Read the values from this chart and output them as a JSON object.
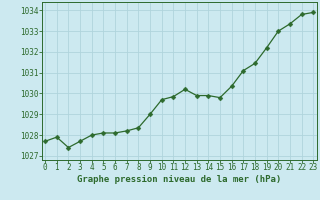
{
  "x": [
    0,
    1,
    2,
    3,
    4,
    5,
    6,
    7,
    8,
    9,
    10,
    11,
    12,
    13,
    14,
    15,
    16,
    17,
    18,
    19,
    20,
    21,
    22,
    23
  ],
  "y": [
    1027.7,
    1027.9,
    1027.4,
    1027.7,
    1028.0,
    1028.1,
    1028.1,
    1028.2,
    1028.35,
    1029.0,
    1029.7,
    1029.85,
    1030.2,
    1029.9,
    1029.9,
    1029.8,
    1030.35,
    1031.1,
    1031.45,
    1032.2,
    1033.0,
    1033.35,
    1033.8,
    1033.9
  ],
  "line_color": "#2d6a2d",
  "marker": "D",
  "marker_size": 2.5,
  "bg_color": "#cce9f0",
  "grid_color": "#b0d4dc",
  "xlabel": "Graphe pression niveau de la mer (hPa)",
  "xlabel_color": "#2d6a2d",
  "ytick_labels": [
    "1027",
    "1028",
    "1029",
    "1030",
    "1031",
    "1032",
    "1033",
    "1034"
  ],
  "ytick_values": [
    1027,
    1028,
    1029,
    1030,
    1031,
    1032,
    1033,
    1034
  ],
  "ylim": [
    1026.8,
    1034.4
  ],
  "xlim": [
    -0.3,
    23.3
  ],
  "tick_color": "#2d6a2d",
  "tick_label_color": "#2d6a2d",
  "spine_color": "#2d6a2d",
  "tick_fontsize": 5.5,
  "xlabel_fontsize": 6.5,
  "linewidth": 0.9
}
